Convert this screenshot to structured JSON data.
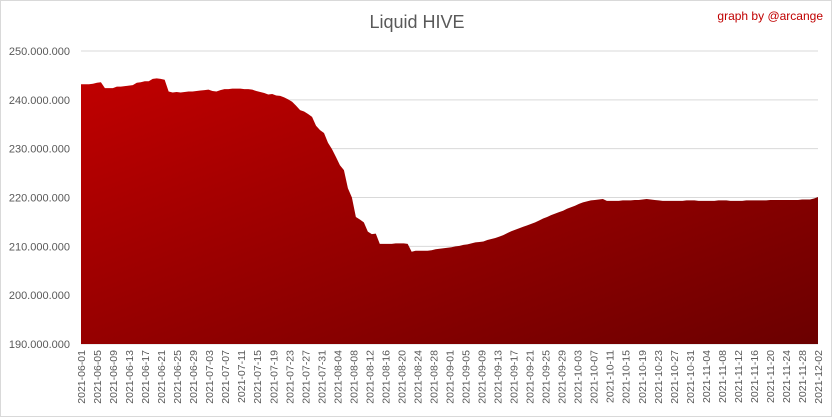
{
  "chart_data": {
    "type": "area",
    "title": "Liquid HIVE",
    "credit": "graph by @arcange",
    "xlabel": "",
    "ylabel": "",
    "ylim": [
      190000000,
      250000000
    ],
    "yticks": [
      190000000,
      200000000,
      210000000,
      220000000,
      230000000,
      240000000,
      250000000
    ],
    "ytick_labels": [
      "190.000.000",
      "200.000.000",
      "210.000.000",
      "220.000.000",
      "230.000.000",
      "240.000.000",
      "250.000.000"
    ],
    "x_start": "2021-06-01",
    "x_end": "2021-12-02",
    "xtick_labels": [
      "2021-06-01",
      "2021-06-05",
      "2021-06-09",
      "2021-06-13",
      "2021-06-17",
      "2021-06-21",
      "2021-06-25",
      "2021-06-29",
      "2021-07-03",
      "2021-07-07",
      "2021-07-11",
      "2021-07-15",
      "2021-07-19",
      "2021-07-23",
      "2021-07-27",
      "2021-07-31",
      "2021-08-04",
      "2021-08-08",
      "2021-08-12",
      "2021-08-16",
      "2021-08-20",
      "2021-08-24",
      "2021-08-28",
      "2021-09-01",
      "2021-09-05",
      "2021-09-09",
      "2021-09-13",
      "2021-09-17",
      "2021-09-21",
      "2021-09-25",
      "2021-09-29",
      "2021-10-03",
      "2021-10-07",
      "2021-10-11",
      "2021-10-15",
      "2021-10-19",
      "2021-10-23",
      "2021-10-27",
      "2021-10-31",
      "2021-11-04",
      "2021-11-08",
      "2021-11-12",
      "2021-11-16",
      "2021-11-20",
      "2021-11-24",
      "2021-11-28",
      "2021-12-02"
    ],
    "grid": true,
    "legend": "none",
    "fill_color_light": "#c00000",
    "fill_color_dark": "#6b0000",
    "values": [
      243200000,
      243200000,
      243200000,
      243300000,
      243500000,
      243600000,
      242400000,
      242400000,
      242400000,
      242700000,
      242700000,
      242800000,
      242900000,
      243000000,
      243500000,
      243600000,
      243800000,
      243800000,
      244300000,
      244400000,
      244300000,
      244100000,
      241700000,
      241500000,
      241600000,
      241500000,
      241600000,
      241700000,
      241700000,
      241800000,
      241900000,
      242000000,
      242100000,
      241800000,
      241700000,
      242000000,
      242200000,
      242200000,
      242300000,
      242300000,
      242300000,
      242200000,
      242200000,
      242100000,
      241800000,
      241600000,
      241400000,
      241100000,
      241200000,
      240900000,
      240800000,
      240500000,
      240100000,
      239600000,
      238800000,
      237900000,
      237600000,
      237100000,
      236500000,
      234700000,
      233800000,
      233200000,
      231200000,
      229900000,
      228300000,
      226600000,
      225600000,
      221900000,
      220000000,
      216000000,
      215500000,
      214900000,
      213000000,
      212500000,
      212600000,
      210500000,
      210500000,
      210500000,
      210500000,
      210600000,
      210600000,
      210600000,
      210500000,
      208900000,
      209100000,
      209100000,
      209100000,
      209100000,
      209200000,
      209400000,
      209500000,
      209600000,
      209700000,
      209800000,
      210000000,
      210100000,
      210300000,
      210400000,
      210600000,
      210800000,
      210900000,
      211000000,
      211300000,
      211500000,
      211700000,
      212000000,
      212300000,
      212700000,
      213100000,
      213400000,
      213700000,
      214000000,
      214300000,
      214600000,
      214900000,
      215300000,
      215700000,
      216000000,
      216400000,
      216700000,
      217000000,
      217300000,
      217700000,
      218000000,
      218300000,
      218700000,
      219000000,
      219200000,
      219400000,
      219500000,
      219600000,
      219700000,
      219300000,
      219300000,
      219300000,
      219300000,
      219400000,
      219400000,
      219400000,
      219500000,
      219500000,
      219600000,
      219700000,
      219600000,
      219500000,
      219400000,
      219300000,
      219300000,
      219300000,
      219300000,
      219300000,
      219300000,
      219400000,
      219400000,
      219400000,
      219300000,
      219300000,
      219300000,
      219300000,
      219300000,
      219400000,
      219400000,
      219400000,
      219300000,
      219300000,
      219300000,
      219300000,
      219400000,
      219400000,
      219400000,
      219400000,
      219400000,
      219400000,
      219500000,
      219500000,
      219500000,
      219500000,
      219500000,
      219500000,
      219500000,
      219500000,
      219600000,
      219600000,
      219600000,
      219800000,
      220100000
    ]
  }
}
